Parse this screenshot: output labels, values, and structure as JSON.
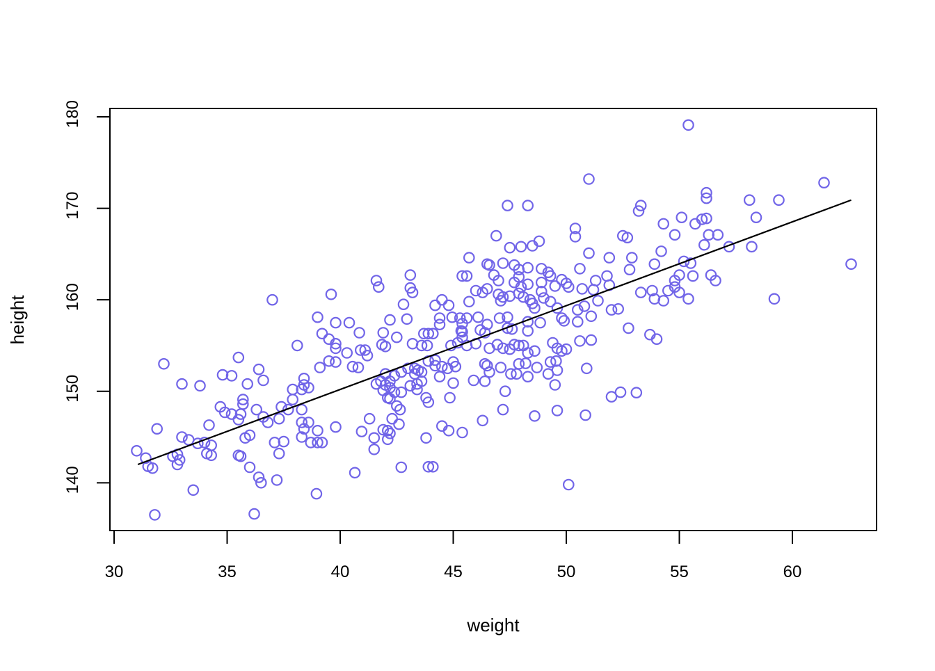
{
  "chart_data": {
    "type": "scatter",
    "title": "",
    "xlabel": "weight",
    "ylabel": "height",
    "x_ticks": [
      30,
      35,
      40,
      45,
      50,
      55,
      60
    ],
    "y_ticks": [
      140,
      150,
      160,
      170,
      180
    ],
    "xlim": [
      29.8,
      63.7
    ],
    "ylim": [
      134.9,
      180.9
    ],
    "grid": false,
    "legend": "none",
    "point_color": "#7165e8",
    "point_style": "open-circle",
    "line_color": "#000000",
    "background_color": "#ffffff",
    "regression_line": {
      "x1": 31.05,
      "y1": 142.0,
      "x2": 62.6,
      "y2": 170.9
    },
    "points": [
      [
        37.0,
        160.0
      ],
      [
        39.6,
        160.6
      ],
      [
        51.0,
        173.2
      ],
      [
        47.4,
        170.3
      ],
      [
        48.3,
        170.3
      ],
      [
        46.9,
        167.0
      ],
      [
        50.4,
        167.8
      ],
      [
        50.4,
        166.9
      ],
      [
        47.5,
        165.7
      ],
      [
        48.0,
        165.8
      ],
      [
        48.5,
        165.9
      ],
      [
        48.8,
        166.4
      ],
      [
        51.0,
        165.1
      ],
      [
        51.9,
        164.6
      ],
      [
        52.5,
        167.0
      ],
      [
        52.7,
        166.8
      ],
      [
        45.7,
        164.6
      ],
      [
        46.5,
        163.9
      ],
      [
        46.6,
        163.8
      ],
      [
        47.2,
        164.0
      ],
      [
        47.7,
        163.8
      ],
      [
        48.3,
        163.5
      ],
      [
        47.9,
        163.3
      ],
      [
        48.9,
        163.4
      ],
      [
        49.2,
        163.0
      ],
      [
        50.6,
        163.4
      ],
      [
        49.3,
        162.6
      ],
      [
        49.8,
        162.2
      ],
      [
        51.8,
        162.6
      ],
      [
        41.6,
        162.1
      ],
      [
        41.7,
        161.4
      ],
      [
        43.1,
        162.7
      ],
      [
        43.1,
        161.3
      ],
      [
        43.2,
        160.8
      ],
      [
        45.4,
        162.6
      ],
      [
        45.6,
        162.6
      ],
      [
        46.8,
        162.7
      ],
      [
        47.0,
        162.1
      ],
      [
        47.9,
        162.5
      ],
      [
        47.7,
        161.9
      ],
      [
        48.0,
        161.4
      ],
      [
        48.3,
        161.7
      ],
      [
        48.9,
        161.9
      ],
      [
        49.5,
        161.5
      ],
      [
        50.0,
        161.8
      ],
      [
        50.1,
        161.4
      ],
      [
        50.7,
        161.2
      ],
      [
        51.2,
        161.1
      ],
      [
        51.3,
        162.1
      ],
      [
        51.9,
        161.6
      ],
      [
        46.0,
        161.0
      ],
      [
        46.3,
        160.8
      ],
      [
        46.5,
        161.2
      ],
      [
        47.0,
        160.6
      ],
      [
        47.2,
        160.3
      ],
      [
        47.1,
        159.9
      ],
      [
        47.5,
        160.4
      ],
      [
        47.9,
        160.7
      ],
      [
        48.1,
        160.3
      ],
      [
        48.4,
        160.0
      ],
      [
        48.9,
        160.9
      ],
      [
        49.0,
        160.2
      ],
      [
        49.3,
        159.8
      ],
      [
        44.2,
        159.4
      ],
      [
        44.5,
        160.0
      ],
      [
        44.8,
        159.4
      ],
      [
        42.8,
        159.5
      ],
      [
        45.7,
        159.8
      ],
      [
        48.5,
        159.6
      ],
      [
        48.6,
        159.1
      ],
      [
        49.6,
        159.1
      ],
      [
        49.8,
        158.0
      ],
      [
        50.5,
        158.9
      ],
      [
        50.8,
        159.3
      ],
      [
        51.4,
        159.9
      ],
      [
        52.0,
        158.9
      ],
      [
        52.3,
        159.0
      ],
      [
        51.1,
        158.2
      ],
      [
        55.4,
        179.1
      ],
      [
        61.4,
        172.8
      ],
      [
        56.2,
        171.7
      ],
      [
        56.2,
        171.1
      ],
      [
        58.1,
        170.9
      ],
      [
        59.4,
        170.9
      ],
      [
        53.3,
        170.3
      ],
      [
        53.2,
        169.7
      ],
      [
        54.3,
        168.3
      ],
      [
        55.1,
        169.0
      ],
      [
        55.7,
        168.3
      ],
      [
        56.0,
        168.8
      ],
      [
        56.2,
        168.9
      ],
      [
        58.4,
        169.0
      ],
      [
        54.8,
        167.1
      ],
      [
        56.3,
        167.1
      ],
      [
        56.7,
        167.1
      ],
      [
        56.1,
        166.0
      ],
      [
        57.2,
        165.8
      ],
      [
        58.2,
        165.8
      ],
      [
        54.2,
        165.3
      ],
      [
        52.9,
        164.6
      ],
      [
        52.8,
        163.3
      ],
      [
        53.9,
        163.9
      ],
      [
        55.2,
        164.2
      ],
      [
        55.5,
        164.0
      ],
      [
        55.0,
        162.7
      ],
      [
        55.6,
        162.6
      ],
      [
        54.8,
        162.1
      ],
      [
        56.4,
        162.7
      ],
      [
        56.6,
        162.1
      ],
      [
        62.6,
        163.9
      ],
      [
        53.3,
        160.8
      ],
      [
        53.8,
        161.0
      ],
      [
        53.9,
        160.1
      ],
      [
        54.3,
        159.9
      ],
      [
        54.5,
        161.0
      ],
      [
        55.0,
        160.8
      ],
      [
        54.8,
        161.4
      ],
      [
        55.4,
        160.1
      ],
      [
        59.2,
        160.1
      ],
      [
        32.2,
        153.0
      ],
      [
        35.5,
        153.7
      ],
      [
        36.4,
        152.4
      ],
      [
        36.6,
        151.2
      ],
      [
        34.8,
        151.8
      ],
      [
        35.2,
        151.7
      ],
      [
        33.8,
        150.6
      ],
      [
        35.9,
        150.8
      ],
      [
        33.0,
        150.8
      ],
      [
        35.7,
        149.1
      ],
      [
        35.7,
        148.6
      ],
      [
        34.7,
        148.3
      ],
      [
        34.9,
        147.7
      ],
      [
        35.2,
        147.5
      ],
      [
        35.6,
        147.5
      ],
      [
        35.5,
        146.9
      ],
      [
        36.3,
        148.0
      ],
      [
        36.6,
        147.2
      ],
      [
        36.8,
        146.6
      ],
      [
        37.4,
        148.3
      ],
      [
        37.7,
        148.0
      ],
      [
        37.3,
        147.0
      ],
      [
        38.3,
        148.0
      ],
      [
        31.9,
        145.9
      ],
      [
        31.0,
        143.5
      ],
      [
        31.4,
        142.7
      ],
      [
        31.5,
        141.8
      ],
      [
        31.7,
        141.6
      ],
      [
        32.6,
        142.9
      ],
      [
        32.8,
        143.1
      ],
      [
        32.9,
        142.5
      ],
      [
        32.8,
        142.0
      ],
      [
        33.3,
        144.7
      ],
      [
        33.0,
        145.0
      ],
      [
        33.7,
        144.3
      ],
      [
        34.0,
        144.4
      ],
      [
        34.3,
        144.1
      ],
      [
        34.1,
        143.2
      ],
      [
        34.3,
        143.0
      ],
      [
        33.5,
        139.2
      ],
      [
        31.8,
        136.5
      ],
      [
        35.5,
        143.0
      ],
      [
        35.6,
        142.9
      ],
      [
        36.0,
        141.7
      ],
      [
        36.4,
        140.6
      ],
      [
        36.5,
        140.0
      ],
      [
        37.2,
        140.3
      ],
      [
        36.2,
        136.6
      ],
      [
        34.2,
        146.3
      ],
      [
        35.8,
        144.9
      ],
      [
        36.0,
        145.2
      ],
      [
        37.1,
        144.4
      ],
      [
        37.3,
        143.2
      ],
      [
        37.5,
        144.5
      ],
      [
        38.3,
        145.0
      ],
      [
        38.7,
        144.4
      ],
      [
        39.0,
        145.7
      ],
      [
        39.8,
        146.1
      ],
      [
        39.0,
        158.1
      ],
      [
        39.8,
        157.5
      ],
      [
        40.4,
        157.5
      ],
      [
        39.2,
        156.3
      ],
      [
        39.5,
        155.7
      ],
      [
        39.8,
        155.2
      ],
      [
        39.8,
        154.7
      ],
      [
        38.1,
        155.0
      ],
      [
        40.85,
        156.4
      ],
      [
        41.1,
        154.5
      ],
      [
        39.1,
        152.6
      ],
      [
        39.5,
        153.3
      ],
      [
        39.8,
        153.2
      ],
      [
        40.3,
        154.2
      ],
      [
        40.9,
        154.5
      ],
      [
        40.55,
        152.7
      ],
      [
        40.8,
        152.6
      ],
      [
        38.4,
        151.4
      ],
      [
        38.4,
        150.7
      ],
      [
        37.9,
        150.2
      ],
      [
        38.3,
        150.2
      ],
      [
        38.6,
        150.4
      ],
      [
        37.9,
        149.1
      ],
      [
        38.3,
        146.6
      ],
      [
        38.6,
        146.6
      ],
      [
        38.4,
        145.9
      ],
      [
        39.0,
        144.4
      ],
      [
        39.2,
        144.4
      ],
      [
        38.95,
        138.8
      ],
      [
        40.65,
        141.1
      ],
      [
        41.3,
        147.0
      ],
      [
        40.95,
        145.6
      ],
      [
        41.5,
        144.9
      ],
      [
        42.2,
        157.8
      ],
      [
        42.95,
        157.9
      ],
      [
        44.4,
        158.0
      ],
      [
        44.4,
        157.3
      ],
      [
        44.95,
        158.1
      ],
      [
        45.3,
        158.0
      ],
      [
        45.6,
        158.0
      ],
      [
        46.1,
        158.1
      ],
      [
        46.5,
        157.3
      ],
      [
        47.05,
        158.0
      ],
      [
        47.4,
        158.1
      ],
      [
        47.4,
        156.9
      ],
      [
        48.3,
        157.6
      ],
      [
        48.85,
        157.5
      ],
      [
        49.9,
        157.7
      ],
      [
        50.5,
        157.6
      ],
      [
        41.9,
        156.4
      ],
      [
        42.5,
        155.9
      ],
      [
        41.85,
        155.1
      ],
      [
        42.0,
        154.9
      ],
      [
        43.7,
        156.3
      ],
      [
        43.9,
        156.3
      ],
      [
        44.1,
        156.3
      ],
      [
        43.2,
        155.2
      ],
      [
        43.6,
        155.0
      ],
      [
        43.85,
        155.0
      ],
      [
        44.9,
        155.0
      ],
      [
        45.2,
        155.3
      ],
      [
        45.4,
        155.9
      ],
      [
        45.4,
        157.4
      ],
      [
        45.35,
        156.6
      ],
      [
        45.4,
        156.5
      ],
      [
        45.6,
        155.0
      ],
      [
        46.0,
        155.2
      ],
      [
        46.2,
        156.7
      ],
      [
        46.4,
        156.4
      ],
      [
        47.6,
        156.8
      ],
      [
        46.6,
        154.7
      ],
      [
        46.95,
        155.1
      ],
      [
        47.2,
        154.7
      ],
      [
        47.5,
        154.6
      ],
      [
        47.7,
        155.1
      ],
      [
        47.9,
        155.0
      ],
      [
        48.1,
        155.0
      ],
      [
        48.3,
        154.2
      ],
      [
        48.3,
        156.6
      ],
      [
        48.6,
        154.4
      ],
      [
        49.4,
        155.3
      ],
      [
        49.6,
        154.7
      ],
      [
        49.8,
        154.4
      ],
      [
        50.0,
        154.6
      ],
      [
        50.6,
        155.5
      ],
      [
        51.1,
        155.6
      ],
      [
        41.2,
        153.9
      ],
      [
        42.0,
        151.9
      ],
      [
        42.4,
        151.7
      ],
      [
        42.7,
        152.1
      ],
      [
        43.0,
        152.5
      ],
      [
        43.3,
        152.5
      ],
      [
        43.3,
        151.9
      ],
      [
        43.45,
        152.3
      ],
      [
        43.6,
        152.1
      ],
      [
        43.9,
        153.3
      ],
      [
        44.2,
        153.4
      ],
      [
        44.2,
        152.8
      ],
      [
        44.5,
        152.7
      ],
      [
        44.75,
        152.5
      ],
      [
        45.0,
        153.2
      ],
      [
        45.1,
        152.7
      ],
      [
        46.4,
        153.0
      ],
      [
        46.5,
        152.8
      ],
      [
        46.6,
        152.1
      ],
      [
        47.1,
        152.6
      ],
      [
        47.9,
        153.0
      ],
      [
        48.2,
        153.05
      ],
      [
        48.7,
        152.6
      ],
      [
        47.55,
        151.9
      ],
      [
        47.8,
        151.9
      ],
      [
        49.3,
        153.2
      ],
      [
        49.55,
        153.3
      ],
      [
        49.2,
        151.9
      ],
      [
        49.6,
        152.3
      ],
      [
        50.9,
        152.5
      ],
      [
        41.6,
        150.8
      ],
      [
        41.8,
        151.1
      ],
      [
        42.0,
        150.7
      ],
      [
        42.2,
        151.1
      ],
      [
        42.2,
        150.4
      ],
      [
        41.9,
        150.1
      ],
      [
        42.1,
        149.3
      ],
      [
        42.2,
        149.2
      ],
      [
        42.4,
        149.9
      ],
      [
        42.7,
        149.9
      ],
      [
        42.5,
        148.4
      ],
      [
        42.65,
        148.0
      ],
      [
        43.1,
        150.6
      ],
      [
        43.4,
        150.8
      ],
      [
        43.6,
        151.1
      ],
      [
        43.4,
        150.2
      ],
      [
        43.8,
        149.3
      ],
      [
        43.9,
        148.8
      ],
      [
        44.4,
        151.6
      ],
      [
        44.85,
        149.3
      ],
      [
        45.0,
        150.9
      ],
      [
        45.9,
        151.2
      ],
      [
        46.4,
        151.1
      ],
      [
        47.3,
        150.0
      ],
      [
        47.2,
        148.0
      ],
      [
        48.3,
        151.6
      ],
      [
        48.6,
        147.3
      ],
      [
        49.5,
        150.7
      ],
      [
        49.6,
        147.9
      ],
      [
        50.85,
        147.4
      ],
      [
        52.0,
        149.4
      ],
      [
        52.4,
        149.9
      ],
      [
        42.3,
        147.0
      ],
      [
        42.6,
        146.4
      ],
      [
        41.9,
        145.8
      ],
      [
        42.1,
        145.7
      ],
      [
        42.2,
        145.4
      ],
      [
        42.1,
        144.75
      ],
      [
        43.8,
        144.9
      ],
      [
        44.5,
        146.2
      ],
      [
        44.8,
        145.7
      ],
      [
        45.4,
        145.5
      ],
      [
        46.3,
        146.8
      ],
      [
        41.5,
        143.65
      ],
      [
        42.7,
        141.7
      ],
      [
        43.9,
        141.75
      ],
      [
        44.1,
        141.75
      ],
      [
        50.1,
        139.8
      ],
      [
        52.75,
        156.9
      ],
      [
        53.7,
        156.2
      ],
      [
        54.0,
        155.7
      ],
      [
        53.1,
        149.85
      ]
    ]
  }
}
